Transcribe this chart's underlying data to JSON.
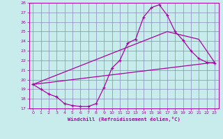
{
  "xlabel": "Windchill (Refroidissement éolien,°C)",
  "bg_color": "#c8ecec",
  "line_color": "#aa00aa",
  "grid_color": "#8888bb",
  "xlim": [
    -0.5,
    23.5
  ],
  "ylim": [
    17,
    28
  ],
  "yticks": [
    17,
    18,
    19,
    20,
    21,
    22,
    23,
    24,
    25,
    26,
    27,
    28
  ],
  "xticks": [
    0,
    1,
    2,
    3,
    4,
    5,
    6,
    7,
    8,
    9,
    10,
    11,
    12,
    13,
    14,
    15,
    16,
    17,
    18,
    19,
    20,
    21,
    22,
    23
  ],
  "curve1_x": [
    0,
    1,
    2,
    3,
    4,
    5,
    6,
    7,
    8,
    9,
    10,
    11,
    12,
    13,
    14,
    15,
    16,
    17,
    18,
    19,
    20,
    21,
    22,
    23
  ],
  "curve1_y": [
    19.5,
    19.0,
    18.5,
    18.2,
    17.5,
    17.3,
    17.2,
    17.2,
    17.5,
    19.2,
    21.2,
    22.0,
    23.8,
    24.2,
    26.5,
    27.5,
    27.8,
    26.7,
    25.0,
    24.1,
    23.0,
    22.2,
    21.8,
    21.7
  ],
  "curve2_x": [
    0,
    23
  ],
  "curve2_y": [
    19.5,
    21.8
  ],
  "curve3_x": [
    0,
    17,
    21,
    22,
    23
  ],
  "curve3_y": [
    19.5,
    25.0,
    24.2,
    23.0,
    21.8
  ]
}
